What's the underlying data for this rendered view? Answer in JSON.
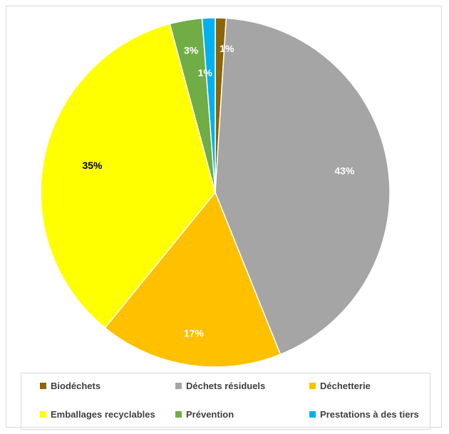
{
  "chart_data": {
    "type": "pie",
    "title": "",
    "slices": [
      {
        "label": "Biodéchets",
        "value": 1,
        "data_label": "1%",
        "color": "#8B6508"
      },
      {
        "label": "Déchets résiduels",
        "value": 43,
        "data_label": "43%",
        "color": "#A5A5A5"
      },
      {
        "label": "Déchetterie",
        "value": 17,
        "data_label": "17%",
        "color": "#FFC000"
      },
      {
        "label": "Emballages recyclables",
        "value": 35,
        "data_label": "35%",
        "color": "#FFFF00"
      },
      {
        "label": "Prévention",
        "value": 3,
        "data_label": "3%",
        "color": "#70AD47"
      },
      {
        "label": "Prestations à des tiers",
        "value": 1.2,
        "data_label": "1%",
        "color": "#00B0F0"
      }
    ],
    "start_angle_deg": 0,
    "direction": "clockwise",
    "legend_position": "bottom",
    "label_colors": {
      "light_text": "#ffffff",
      "dark_text": "#000000"
    }
  }
}
